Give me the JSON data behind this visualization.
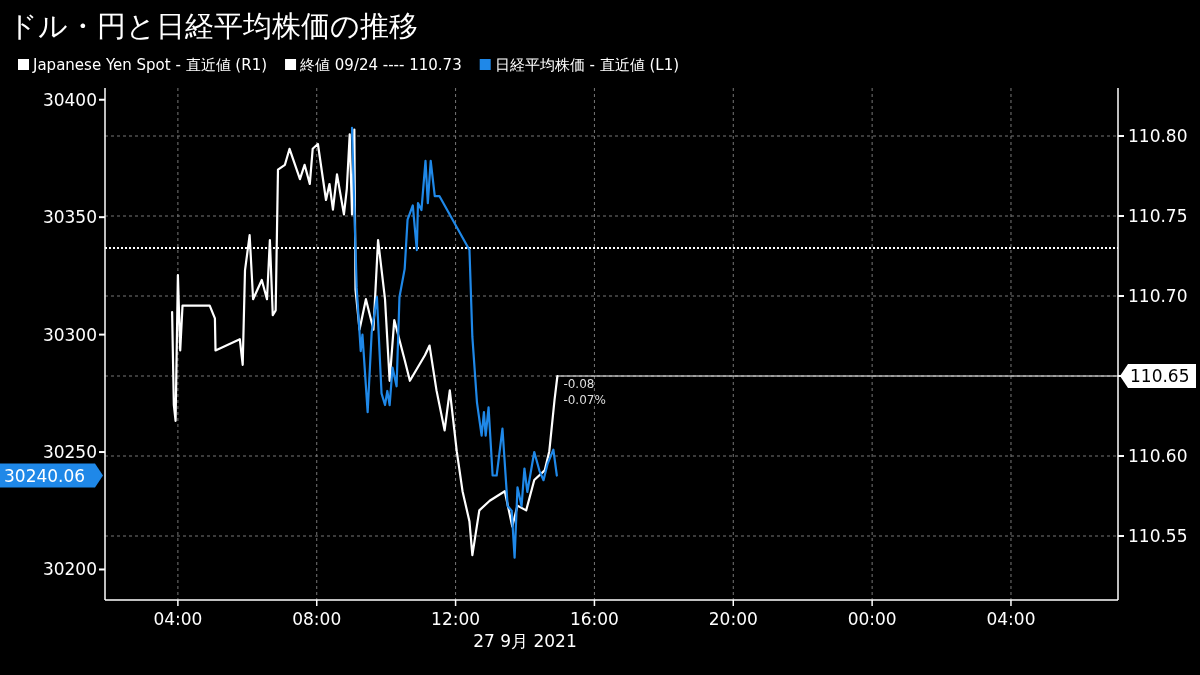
{
  "chart_data": {
    "type": "line",
    "title": "ドル・円と日経平均株価の推移",
    "xlabel": "27 9月 2021",
    "xlim": [
      "2021-09-27T01:54",
      "2021-09-28T07:05"
    ],
    "ylim": [
      30187,
      30405
    ],
    "y2lim": [
      110.51,
      110.83
    ],
    "xticks": [
      {
        "value": "2021-09-27T04:00",
        "label": "04:00"
      },
      {
        "value": "2021-09-27T08:00",
        "label": "08:00"
      },
      {
        "value": "2021-09-27T12:00",
        "label": "12:00"
      },
      {
        "value": "2021-09-27T16:00",
        "label": "16:00"
      },
      {
        "value": "2021-09-27T20:00",
        "label": "20:00"
      },
      {
        "value": "2021-09-28T00:00",
        "label": "00:00"
      },
      {
        "value": "2021-09-28T04:00",
        "label": "04:00"
      }
    ],
    "yticks": [
      30200,
      30250,
      30300,
      30350,
      30400
    ],
    "y2ticks": [
      {
        "value": 110.55,
        "label": "110.55"
      },
      {
        "value": 110.6,
        "label": "110.60"
      },
      {
        "value": 110.65,
        "label": null
      },
      {
        "value": 110.7,
        "label": "110.70"
      },
      {
        "value": 110.75,
        "label": "110.75"
      },
      {
        "value": 110.8,
        "label": "110.80"
      }
    ],
    "grid": true,
    "legend": "top left",
    "ref_lines": [
      {
        "axis": "y2",
        "value": 110.73,
        "label": "終値 09/24 ---- 110.73",
        "color": "#ffffff",
        "line_style": "dotted"
      }
    ],
    "series": [
      {
        "name": "Japanese Yen Spot - 直近値 (R1)",
        "color": "#ffffff",
        "axis": "y2",
        "x": [
          "2021-09-27T03:50",
          "2021-09-27T03:53",
          "2021-09-27T03:56",
          "2021-09-27T04:00",
          "2021-09-27T04:04",
          "2021-09-27T04:08",
          "2021-09-27T04:21",
          "2021-09-27T04:55",
          "2021-09-27T05:04",
          "2021-09-27T05:05",
          "2021-09-27T05:47",
          "2021-09-27T05:52",
          "2021-09-27T05:56",
          "2021-09-27T06:04",
          "2021-09-27T06:10",
          "2021-09-27T06:25",
          "2021-09-27T06:34",
          "2021-09-27T06:39",
          "2021-09-27T06:44",
          "2021-09-27T06:49",
          "2021-09-27T06:53",
          "2021-09-27T07:05",
          "2021-09-27T07:13",
          "2021-09-27T07:31",
          "2021-09-27T07:39",
          "2021-09-27T07:48",
          "2021-09-27T07:53",
          "2021-09-27T08:02",
          "2021-09-27T08:16",
          "2021-09-27T08:22",
          "2021-09-27T08:28",
          "2021-09-27T08:35",
          "2021-09-27T08:47",
          "2021-09-27T08:52",
          "2021-09-27T08:57",
          "2021-09-27T09:01",
          "2021-09-27T09:05",
          "2021-09-27T09:07",
          "2021-09-27T09:14",
          "2021-09-27T09:25",
          "2021-09-27T09:38",
          "2021-09-27T09:46",
          "2021-09-27T09:58",
          "2021-09-27T10:06",
          "2021-09-27T10:14",
          "2021-09-27T10:32",
          "2021-09-27T10:41",
          "2021-09-27T11:07",
          "2021-09-27T11:15",
          "2021-09-27T11:27",
          "2021-09-27T11:41",
          "2021-09-27T11:50",
          "2021-09-27T12:02",
          "2021-09-27T12:12",
          "2021-09-27T12:24",
          "2021-09-27T12:29",
          "2021-09-27T12:41",
          "2021-09-27T12:59",
          "2021-09-27T13:25",
          "2021-09-27T13:38",
          "2021-09-27T13:47",
          "2021-09-27T14:02",
          "2021-09-27T14:16",
          "2021-09-27T14:34",
          "2021-09-27T14:42",
          "2021-09-27T14:51",
          "2021-09-27T14:56"
        ],
        "values": [
          110.69,
          110.632,
          110.622,
          110.713,
          110.666,
          110.694,
          110.694,
          110.694,
          110.686,
          110.666,
          110.673,
          110.657,
          110.716,
          110.738,
          110.698,
          110.71,
          110.698,
          110.735,
          110.688,
          110.691,
          110.779,
          110.782,
          110.792,
          110.773,
          110.782,
          110.77,
          110.792,
          110.795,
          110.76,
          110.77,
          110.754,
          110.776,
          110.751,
          110.767,
          110.801,
          110.751,
          110.804,
          110.704,
          110.679,
          110.698,
          110.679,
          110.735,
          110.698,
          110.647,
          110.685,
          110.66,
          110.647,
          110.663,
          110.669,
          110.641,
          110.616,
          110.641,
          110.603,
          110.578,
          110.559,
          110.538,
          110.566,
          110.572,
          110.578,
          110.556,
          110.569,
          110.566,
          110.585,
          110.591,
          110.603,
          110.635,
          110.65
        ]
      },
      {
        "name": "日経平均株価 - 直近値 (L1)",
        "color": "#1f88e8",
        "axis": "y",
        "x": [
          "2021-09-27T09:01",
          "2021-09-27T09:09",
          "2021-09-27T09:16",
          "2021-09-27T09:19",
          "2021-09-27T09:28",
          "2021-09-27T09:35",
          "2021-09-27T09:44",
          "2021-09-27T09:52",
          "2021-09-27T09:58",
          "2021-09-27T10:02",
          "2021-09-27T10:06",
          "2021-09-27T10:11",
          "2021-09-27T10:18",
          "2021-09-27T10:23",
          "2021-09-27T10:32",
          "2021-09-27T10:37",
          "2021-09-27T10:46",
          "2021-09-27T10:53",
          "2021-09-27T10:55",
          "2021-09-27T11:01",
          "2021-09-27T11:08",
          "2021-09-27T11:12",
          "2021-09-27T11:17",
          "2021-09-27T11:24",
          "2021-09-27T11:32",
          "2021-09-27T12:24",
          "2021-09-27T12:29",
          "2021-09-27T12:37",
          "2021-09-27T12:45",
          "2021-09-27T12:49",
          "2021-09-27T12:52",
          "2021-09-27T12:57",
          "2021-09-27T13:04",
          "2021-09-27T13:11",
          "2021-09-27T13:21",
          "2021-09-27T13:30",
          "2021-09-27T13:37",
          "2021-09-27T13:42",
          "2021-09-27T13:47",
          "2021-09-27T13:54",
          "2021-09-27T13:59",
          "2021-09-27T14:04",
          "2021-09-27T14:16",
          "2021-09-27T14:25",
          "2021-09-27T14:32",
          "2021-09-27T14:39",
          "2021-09-27T14:49",
          "2021-09-27T14:55"
        ],
        "values": [
          30388,
          30320,
          30293,
          30300,
          30267,
          30301,
          30316,
          30275,
          30270,
          30276,
          30270,
          30286,
          30278,
          30316,
          30328,
          30349,
          30355,
          30336,
          30356,
          30353,
          30374,
          30356,
          30374,
          30359,
          30359,
          30336,
          30299,
          30271,
          30257,
          30267,
          30257,
          30269,
          30240,
          30240,
          30260,
          30227,
          30225,
          30205,
          30235,
          30227,
          30243,
          30233,
          30250,
          30242,
          30238,
          30245,
          30251,
          30240
        ]
      }
    ],
    "annotations": [
      "30240.06",
      "110.65",
      "-0.08",
      "-0.07%"
    ]
  }
}
